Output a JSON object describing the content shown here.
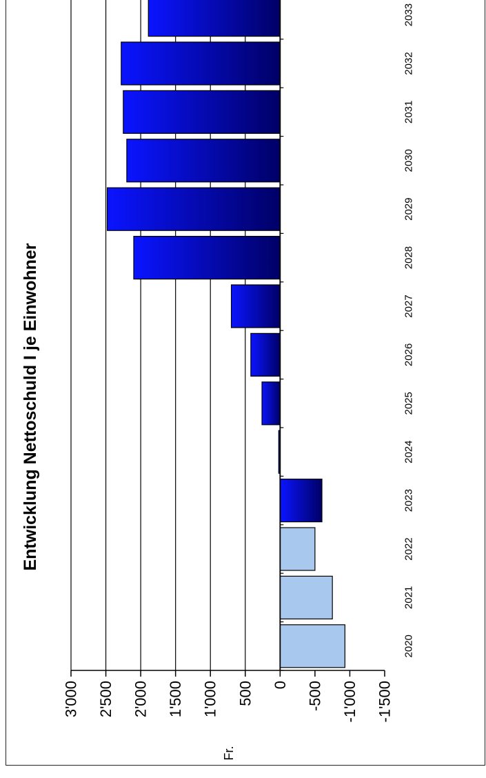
{
  "chart_data": {
    "type": "bar",
    "title": "Entwicklung Nettoschuld I je Einwohner",
    "ylabel": "Fr.",
    "xlabel": "",
    "categories": [
      "2020",
      "2021",
      "2022",
      "2023",
      "2024",
      "2025",
      "2026",
      "2027",
      "2028",
      "2029",
      "2030",
      "2031",
      "2032",
      "2033"
    ],
    "values": [
      -930,
      -750,
      -500,
      -600,
      20,
      260,
      420,
      700,
      2100,
      2480,
      2200,
      2250,
      2280,
      1890
    ],
    "ylim": [
      -1500,
      3000
    ],
    "yticks": [
      -1500,
      -1000,
      -500,
      0,
      500,
      1000,
      1500,
      2000,
      2500,
      3000
    ],
    "ytick_labels": [
      "-1'500",
      "-1'000",
      "-500",
      "0",
      "500",
      "1'000",
      "1'500",
      "2'000",
      "2'500",
      "3'000"
    ],
    "bar_styles": [
      "light",
      "light",
      "light",
      "dark",
      "dark",
      "dark",
      "dark",
      "dark",
      "dark",
      "dark",
      "dark",
      "dark",
      "dark",
      "dark"
    ],
    "grid": true,
    "legend": "none",
    "colors": {
      "light_bar": "#a9c8ee",
      "dark_bar_start": "#0a14ff",
      "dark_bar_end": "#000066",
      "grid": "#000000"
    }
  }
}
